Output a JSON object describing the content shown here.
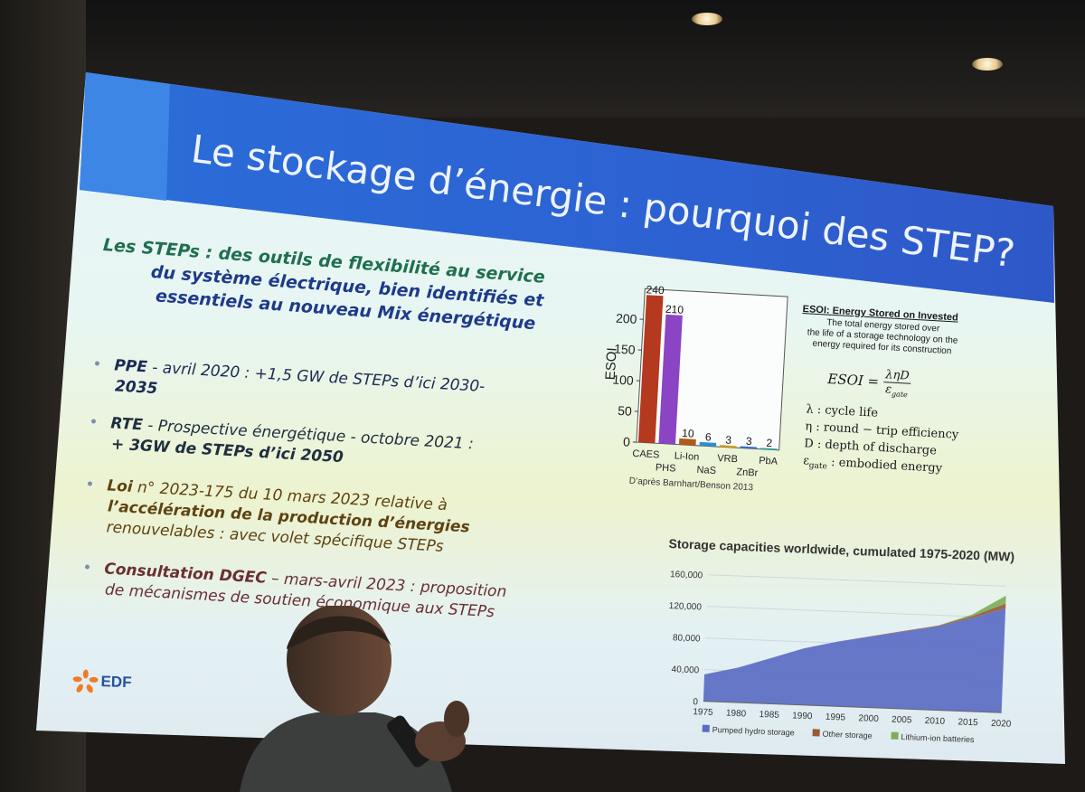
{
  "slide": {
    "title": "Le stockage d’énergie : pourquoi des STEP?",
    "intro": {
      "line1": "Les STEPs : des outils de flexibilité au service",
      "line2": "du système électrique, bien identifiés et",
      "line3": "essentiels au nouveau Mix énergétique"
    },
    "bullets": [
      {
        "key": "PPE",
        "line1": " - avril 2020 : +1,5 GW  de STEPs d’ici 2030-",
        "line2": "2035"
      },
      {
        "key": "RTE",
        "line1": " - Prospective énergétique - octobre 2021  :",
        "line2": "+ 3GW de STEPs d’ici 2050"
      },
      {
        "key": "Loi",
        "line1": " n° 2023-175 du 10 mars 2023 relative à",
        "line2": "l’accélération de la production d’énergies",
        "line3": "renouvelables : avec volet spécifique STEPs"
      },
      {
        "key": "Consultation DGEC",
        "line1": " – mars-avril 2023 : proposition",
        "line2": "de mécanismes de soutien économique aux STEPs"
      }
    ],
    "logo_text": "EDF",
    "colors": {
      "title_bar": "#2d62d2",
      "accent_green": "#1f6f4f",
      "accent_blue": "#1e3a8a"
    }
  },
  "esoi": {
    "definition_title": "ESOI: Energy Stored on Invested",
    "definition_text": [
      "The total energy stored over",
      "the life of a storage technology on the",
      "energy required for its construction"
    ],
    "formula_lhs": "ESOI =",
    "formula_num": "ληD",
    "formula_den": "ε",
    "formula_den_sub": "gate",
    "legend": [
      {
        "symbol": "λ",
        "text": " : cycle life"
      },
      {
        "symbol": "η",
        "text": " : round − trip efficiency"
      },
      {
        "symbol": "D",
        "text": " : depth of discharge"
      },
      {
        "symbol": "ε",
        "sub": "gate",
        "text": " : embodied energy"
      }
    ],
    "source": "D’après Barnhart/Benson 2013"
  },
  "chart_data": [
    {
      "type": "bar",
      "ylabel": "ESOI",
      "ylim": [
        0,
        250
      ],
      "yticks": [
        0,
        50,
        100,
        150,
        200
      ],
      "categories": [
        "CAES",
        "PHS",
        "Li-Ion",
        "NaS",
        "VRB",
        "ZnBr",
        "PbA"
      ],
      "values": [
        240,
        210,
        10,
        6,
        3,
        3,
        2
      ],
      "colors": [
        "#b5391f",
        "#8a44c4",
        "#b25a1a",
        "#2d8fcf",
        "#d5a21d",
        "#3a6fd8",
        "#27a7a0"
      ]
    },
    {
      "type": "area",
      "title": "Storage capacities worldwide, cumulated 1975-2020 (MW)",
      "x": [
        1975,
        1980,
        1985,
        1990,
        1995,
        2000,
        2005,
        2010,
        2015,
        2020
      ],
      "xlim": [
        1975,
        2020
      ],
      "ylim": [
        0,
        160000
      ],
      "yticks": [
        0,
        40000,
        80000,
        120000,
        160000
      ],
      "ytick_labels": [
        "0",
        "40,000",
        "80,000",
        "120,000",
        "160,000"
      ],
      "series": [
        {
          "name": "Pumped hydro storage",
          "values": [
            34000,
            44000,
            58000,
            72000,
            82000,
            90000,
            98000,
            106000,
            118000,
            132000
          ],
          "color": "#5b6cc4"
        },
        {
          "name": "Other storage",
          "values": [
            0,
            0,
            0,
            0,
            0,
            500,
            800,
            1000,
            2500,
            6000
          ],
          "color": "#9a5a3a"
        },
        {
          "name": "Lithium-ion batteries",
          "values": [
            0,
            0,
            0,
            0,
            0,
            0,
            0,
            200,
            2000,
            10000
          ],
          "color": "#7fae58"
        }
      ],
      "legend_position": "bottom"
    }
  ]
}
